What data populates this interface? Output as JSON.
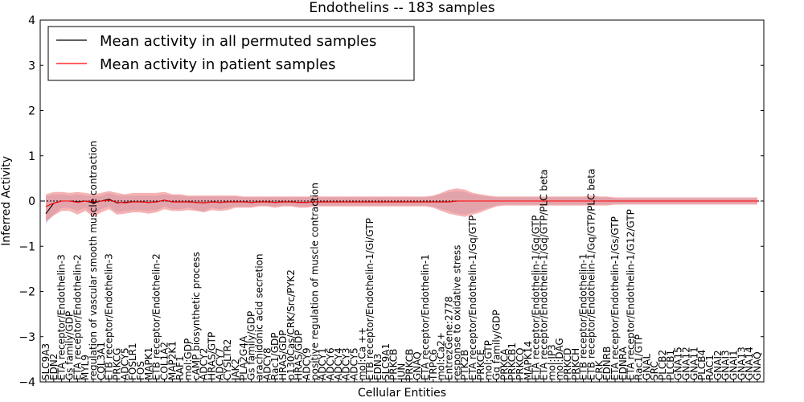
{
  "chart_data": {
    "type": "line",
    "title": "Endothelins -- 183 samples",
    "xlabel": "Cellular Entities",
    "ylabel": "Inferred Activity",
    "ylim": [
      -4,
      4
    ],
    "yticks": [
      -4,
      -3,
      -2,
      -1,
      0,
      1,
      2,
      3,
      4
    ],
    "ytick_labels": [
      "−4",
      "−3",
      "−2",
      "−1",
      "0",
      "1",
      "2",
      "3",
      "4"
    ],
    "grid": false,
    "legend": {
      "placement": "top-left",
      "entries": [
        {
          "label": "Mean activity in all permuted samples",
          "color": "#000000"
        },
        {
          "label": "Mean activity in patient samples",
          "color": "#ff0000"
        }
      ]
    },
    "colors": {
      "patient": "#ff0000",
      "patient_band": "#f08080",
      "permuted": "#000000",
      "permuted_band": "#aab4d8"
    },
    "categories": [
      "SLC9A3",
      "EDN2",
      "ETA receptor/Endothelin-3",
      "Gs family/GDP",
      "ETA receptor/Endothelin-2",
      "MYL9",
      "regulation of vascular smooth muscle contraction",
      "COL3A1",
      "ETB receptor/Endothelin-3",
      "PRKCG",
      "ADCY5",
      "FOSLR1",
      "FOS",
      "MAPK1",
      "ETB receptor/Endothelin-2",
      "COL1A2",
      "MAP2K1",
      "RAF1",
      "mol:GDP",
      "cAMP biosynthetic process",
      "ADCY2",
      "HRAS/GTP",
      "ADCY7",
      "CYSLTR2",
      "JAK2",
      "PLA2G4A",
      "Gs family/GDP",
      "arachidonic acid secretion",
      "ADCY8",
      "Rac1/GDP",
      "HRAS/GDP",
      "p130Cas/CRK/Src/PYK2",
      "HRAS/GDP",
      "ADCY9",
      "positive regulation of muscle contraction",
      "ADCY1",
      "ADCY6",
      "ADCY4",
      "ADCY3",
      "ADCY5",
      "mol:Ca ++",
      "ETB receptor/Endothelin-1/Gi/GTP",
      "EDN3",
      "SLC9A1",
      "PRKCB",
      "JUN",
      "PRKCB",
      "GNAQ",
      "ETA receptor/Endothelin-1",
      "TRPC6",
      "mol:Ca2+",
      "EntrezGene:2778",
      "response to oxidative stress",
      "PTK2B",
      "ETA receptor/Endothelin-1/Gq/GTP",
      "PRKCE",
      "mol:GTP",
      "Gq family/GDP",
      "PRKCA",
      "PRKCB1",
      "PRKCQ",
      "MAPK14",
      "ETA receptor/Endothelin-1/Gq/GTP",
      "ETA receptor/Endothelin-1/Gq/GTP/PLC beta",
      "mol:IP3",
      "mol:DAG",
      "PRKCD",
      "PRKCH",
      "ETB receptor/Endothelin-1",
      "ETB receptor/Endothelin-1/Gq/GTP/PLC beta",
      "CRK",
      "EDNRB",
      "ETA receptor/Endothelin-1/Gs/GTP",
      "EDNRA",
      "ETA receptor/Endothelin-1/G12/GTP",
      "Rac1/GTP",
      "GNAL",
      "SRC",
      "PLCB2",
      "PLCB1",
      "GNA15",
      "GNA12",
      "GNA11",
      "PLCB4",
      "RAC1",
      "GNAI2",
      "GNAI3",
      "GNAI1",
      "GNA13",
      "GNA14",
      "GNAQ"
    ],
    "series": [
      {
        "name": "Mean activity in all permuted samples",
        "values": [
          -0.28,
          -0.05,
          0.0,
          0.0,
          -0.02,
          0.0,
          -0.04,
          0.0,
          0.04,
          -0.04,
          -0.03,
          -0.02,
          -0.02,
          -0.03,
          -0.02,
          0.02,
          -0.02,
          -0.02,
          -0.02,
          -0.03,
          -0.04,
          -0.02,
          -0.03,
          -0.02,
          -0.02,
          -0.02,
          -0.03,
          -0.02,
          -0.02,
          -0.03,
          -0.02,
          -0.02,
          -0.03,
          -0.03,
          -0.02,
          -0.02,
          -0.02,
          -0.02,
          -0.02,
          -0.02,
          -0.02,
          -0.02,
          -0.02,
          -0.02,
          -0.02,
          -0.02,
          -0.02,
          -0.02,
          -0.02,
          -0.02,
          -0.02,
          -0.02,
          0.0,
          0.0,
          0.0,
          0.0,
          0.0,
          0.0,
          0.0,
          0.0,
          0.0,
          0.0,
          0.0,
          0.0,
          0.0,
          0.0,
          0.0,
          0.0,
          0.0,
          0.0,
          0.0,
          0.0,
          0.0,
          0.0,
          0.0,
          0.0,
          0.0,
          0.0,
          0.0,
          0.0,
          0.0,
          0.0,
          0.0,
          0.0,
          0.0,
          0.0,
          0.0,
          0.0,
          0.0,
          0.0,
          0.0
        ],
        "lower": [
          -0.5,
          -0.3,
          -0.15,
          -0.15,
          -0.22,
          -0.15,
          -0.3,
          -0.18,
          -0.12,
          -0.25,
          -0.22,
          -0.2,
          -0.2,
          -0.22,
          -0.2,
          -0.12,
          -0.18,
          -0.18,
          -0.15,
          -0.2,
          -0.22,
          -0.15,
          -0.18,
          -0.15,
          -0.12,
          -0.12,
          -0.12,
          -0.1,
          -0.1,
          -0.12,
          -0.1,
          -0.1,
          -0.12,
          -0.12,
          -0.1,
          -0.1,
          -0.1,
          -0.1,
          -0.1,
          -0.1,
          -0.1,
          -0.1,
          -0.1,
          -0.1,
          -0.1,
          -0.1,
          -0.1,
          -0.1,
          -0.1,
          -0.12,
          -0.18,
          -0.22,
          -0.28,
          -0.3,
          -0.25,
          -0.2,
          -0.15,
          -0.1,
          -0.08,
          -0.08,
          -0.08,
          -0.08,
          -0.08,
          -0.08,
          -0.08,
          -0.08,
          -0.08,
          -0.08,
          -0.08,
          -0.08,
          -0.08,
          -0.08,
          -0.06,
          -0.06,
          -0.06,
          -0.06,
          -0.06,
          -0.06,
          -0.06,
          -0.06,
          -0.06,
          -0.06,
          -0.06,
          -0.06,
          -0.06,
          -0.06,
          -0.06,
          -0.06,
          -0.06,
          -0.06,
          -0.06
        ],
        "upper": [
          0.1,
          0.15,
          0.15,
          0.12,
          0.15,
          0.12,
          0.1,
          0.12,
          0.18,
          0.12,
          0.12,
          0.12,
          0.12,
          0.12,
          0.12,
          0.15,
          0.12,
          0.12,
          0.1,
          0.1,
          0.1,
          0.1,
          0.1,
          0.1,
          0.1,
          0.08,
          0.08,
          0.08,
          0.08,
          0.08,
          0.08,
          0.08,
          0.08,
          0.08,
          0.08,
          0.08,
          0.08,
          0.08,
          0.08,
          0.08,
          0.08,
          0.08,
          0.08,
          0.08,
          0.08,
          0.08,
          0.08,
          0.08,
          0.08,
          0.1,
          0.15,
          0.2,
          0.22,
          0.2,
          0.15,
          0.12,
          0.1,
          0.08,
          0.08,
          0.08,
          0.08,
          0.08,
          0.08,
          0.08,
          0.08,
          0.08,
          0.08,
          0.08,
          0.08,
          0.08,
          0.08,
          0.08,
          0.06,
          0.06,
          0.06,
          0.06,
          0.06,
          0.06,
          0.06,
          0.06,
          0.06,
          0.06,
          0.06,
          0.06,
          0.06,
          0.06,
          0.06,
          0.06,
          0.06,
          0.06,
          0.06
        ]
      },
      {
        "name": "Mean activity in patient samples",
        "values": [
          -0.12,
          -0.05,
          0.0,
          0.0,
          -0.03,
          0.0,
          -0.02,
          0.0,
          0.02,
          -0.03,
          -0.04,
          -0.02,
          -0.02,
          -0.03,
          -0.02,
          0.02,
          -0.02,
          -0.02,
          -0.02,
          -0.03,
          -0.04,
          -0.02,
          -0.03,
          -0.02,
          -0.02,
          -0.02,
          -0.03,
          -0.02,
          -0.02,
          -0.03,
          -0.02,
          -0.02,
          -0.03,
          -0.03,
          -0.02,
          -0.02,
          -0.02,
          -0.02,
          -0.02,
          -0.02,
          -0.02,
          -0.02,
          -0.02,
          -0.02,
          -0.02,
          -0.02,
          -0.02,
          -0.02,
          -0.02,
          -0.02,
          -0.02,
          -0.02,
          0.0,
          0.0,
          0.0,
          0.0,
          0.0,
          0.0,
          0.0,
          0.0,
          0.0,
          0.0,
          0.0,
          0.0,
          0.0,
          0.0,
          0.0,
          0.0,
          0.0,
          0.0,
          0.0,
          0.0,
          0.0,
          0.0,
          0.0,
          0.0,
          0.0,
          0.0,
          0.0,
          0.0,
          0.0,
          0.0,
          0.0,
          0.0,
          0.0,
          0.0,
          0.0,
          0.0,
          0.0,
          0.0,
          0.0
        ],
        "lower": [
          -0.45,
          -0.32,
          -0.22,
          -0.22,
          -0.3,
          -0.22,
          -0.35,
          -0.25,
          -0.18,
          -0.3,
          -0.28,
          -0.25,
          -0.25,
          -0.28,
          -0.25,
          -0.18,
          -0.22,
          -0.22,
          -0.2,
          -0.22,
          -0.25,
          -0.2,
          -0.22,
          -0.2,
          -0.15,
          -0.15,
          -0.15,
          -0.12,
          -0.12,
          -0.15,
          -0.12,
          -0.12,
          -0.15,
          -0.15,
          -0.12,
          -0.12,
          -0.12,
          -0.12,
          -0.12,
          -0.12,
          -0.12,
          -0.12,
          -0.12,
          -0.12,
          -0.12,
          -0.12,
          -0.12,
          -0.12,
          -0.12,
          -0.15,
          -0.22,
          -0.28,
          -0.32,
          -0.35,
          -0.3,
          -0.25,
          -0.18,
          -0.12,
          -0.1,
          -0.1,
          -0.1,
          -0.1,
          -0.1,
          -0.1,
          -0.1,
          -0.1,
          -0.1,
          -0.1,
          -0.1,
          -0.1,
          -0.1,
          -0.1,
          -0.08,
          -0.08,
          -0.08,
          -0.08,
          -0.08,
          -0.08,
          -0.08,
          -0.08,
          -0.08,
          -0.08,
          -0.08,
          -0.08,
          -0.08,
          -0.08,
          -0.08,
          -0.08,
          -0.08,
          -0.08,
          -0.08
        ],
        "upper": [
          0.15,
          0.2,
          0.2,
          0.18,
          0.2,
          0.18,
          0.15,
          0.18,
          0.22,
          0.18,
          0.15,
          0.18,
          0.18,
          0.18,
          0.18,
          0.2,
          0.15,
          0.15,
          0.12,
          0.12,
          0.12,
          0.12,
          0.12,
          0.12,
          0.12,
          0.1,
          0.1,
          0.1,
          0.1,
          0.1,
          0.1,
          0.1,
          0.1,
          0.1,
          0.1,
          0.1,
          0.1,
          0.1,
          0.1,
          0.1,
          0.1,
          0.1,
          0.1,
          0.1,
          0.1,
          0.1,
          0.1,
          0.1,
          0.1,
          0.12,
          0.18,
          0.25,
          0.28,
          0.25,
          0.18,
          0.15,
          0.12,
          0.1,
          0.1,
          0.1,
          0.1,
          0.1,
          0.1,
          0.1,
          0.1,
          0.1,
          0.1,
          0.1,
          0.1,
          0.12,
          0.1,
          0.1,
          0.08,
          0.08,
          0.08,
          0.08,
          0.08,
          0.08,
          0.08,
          0.08,
          0.08,
          0.08,
          0.08,
          0.08,
          0.08,
          0.08,
          0.08,
          0.08,
          0.08,
          0.08,
          0.08
        ]
      }
    ]
  }
}
